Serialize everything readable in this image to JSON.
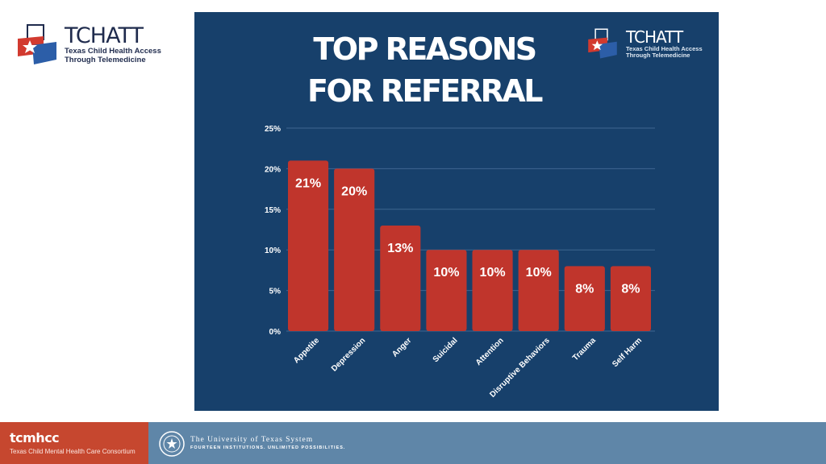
{
  "brand_logo": {
    "name": "TCHATT",
    "subtitle_line1": "Texas Child Health Access",
    "subtitle_line2": "Through Telemedicine"
  },
  "footer": {
    "brand": "tcmhcc",
    "brand_subtitle": "Texas Child Mental Health Care Consortium",
    "ut_name": "The University of Texas System",
    "ut_motto": "FOURTEEN INSTITUTIONS. UNLIMITED POSSIBILITIES."
  },
  "colors": {
    "panel": "#17406b",
    "bar": "#c0352c",
    "grid": "#3f6690",
    "footer_left": "#c6472f",
    "footer_right": "#5f86a8"
  },
  "chart_data": {
    "type": "bar",
    "title_line1": "TOP REASONS",
    "title_line2": "FOR REFERRAL",
    "categories": [
      "Appetite",
      "Depression",
      "Anger",
      "Suicidal",
      "Attention",
      "Disruptive Behaviors",
      "Trauma",
      "Self Harm"
    ],
    "values": [
      21,
      20,
      13,
      10,
      10,
      10,
      8,
      8
    ],
    "data_labels": [
      "21%",
      "20%",
      "13%",
      "10%",
      "10%",
      "10%",
      "8%",
      "8%"
    ],
    "y_ticks": [
      "0%",
      "5%",
      "10%",
      "15%",
      "20%",
      "25%"
    ],
    "y_tick_values": [
      0,
      5,
      10,
      15,
      20,
      25
    ],
    "ylim": [
      0,
      25
    ],
    "grid": true,
    "xlabel": "",
    "ylabel": ""
  }
}
